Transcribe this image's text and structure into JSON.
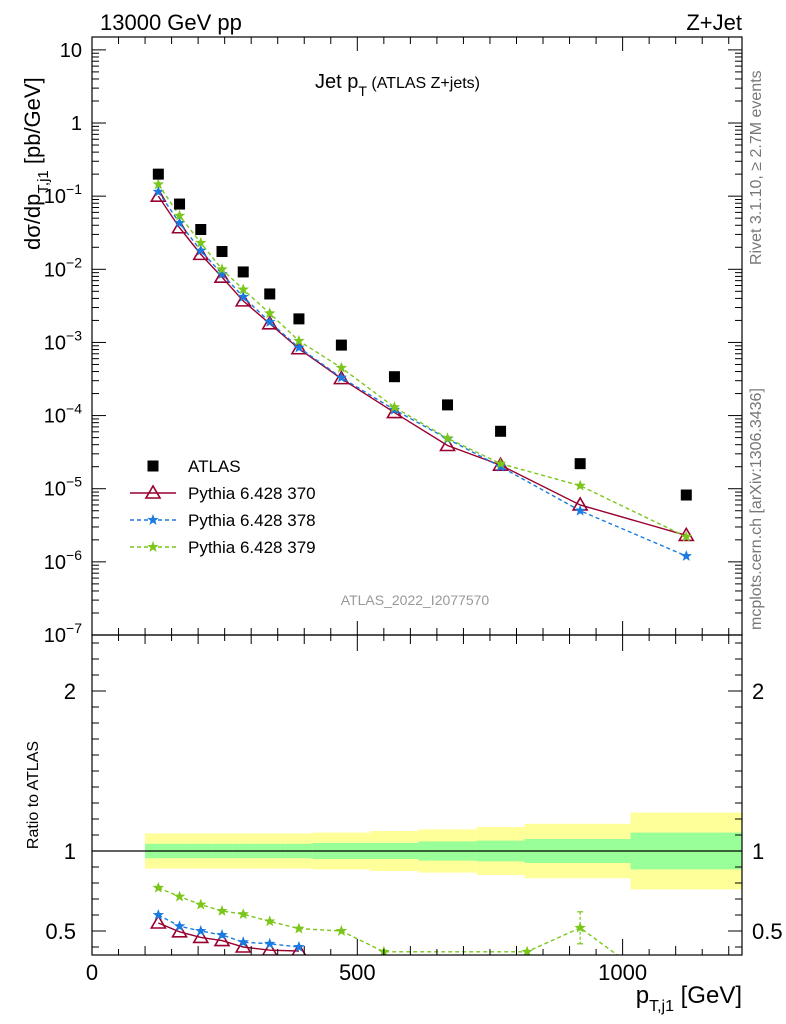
{
  "header": {
    "left": "13000 GeV pp",
    "right": "Z+Jet"
  },
  "side_labels": {
    "rivet": "Rivet 3.1.10, ≥ 2.7M events",
    "mcplots": "mcplots.cern.ch [arXiv:1306.3436]"
  },
  "chart_data": [
    {
      "type": "scatter",
      "title_main": "Jet p",
      "title_sub": "T",
      "title_tail": "(ATLAS Z+jets)",
      "ylabel_main": "dσ/dp",
      "ylabel_sub": "T,j1",
      "ylabel_tail": " [pb/GeV]",
      "yscale": "log",
      "ylim": [
        1e-07,
        15
      ],
      "xlim": [
        0,
        1225
      ],
      "yticks": [
        {
          "v": 1e-07,
          "base": "10",
          "exp": "−7"
        },
        {
          "v": 1e-06,
          "base": "10",
          "exp": "−6"
        },
        {
          "v": 1e-05,
          "base": "10",
          "exp": "−5"
        },
        {
          "v": 0.0001,
          "base": "10",
          "exp": "−4"
        },
        {
          "v": 0.001,
          "base": "10",
          "exp": "−3"
        },
        {
          "v": 0.01,
          "base": "10",
          "exp": "−2"
        },
        {
          "v": 0.1,
          "base": "10",
          "exp": "−1"
        },
        {
          "v": 1,
          "base": "1",
          "exp": ""
        },
        {
          "v": 10,
          "base": "10",
          "exp": ""
        }
      ],
      "watermark": "ATLAS_2022_I2077570",
      "legend_position": "bottom-left",
      "x": [
        125,
        165,
        205,
        245,
        285,
        335,
        390,
        470,
        570,
        670,
        770,
        920,
        1120
      ],
      "series": [
        {
          "name": "ATLAS",
          "color": "#000000",
          "marker": "square",
          "dash": "",
          "values": [
            0.2,
            0.078,
            0.035,
            0.0175,
            0.0092,
            0.0046,
            0.0021,
            0.00092,
            0.00034,
            0.00014,
            6.1e-05,
            2.2e-05,
            8.2e-06
          ]
        },
        {
          "name": "Pythia 6.428 370",
          "color": "#99002e",
          "marker": "triangle",
          "dash": "",
          "values": [
            0.1,
            0.037,
            0.016,
            0.0078,
            0.0037,
            0.0018,
            0.00082,
            0.00032,
            0.00011,
            3.9e-05,
            2.1e-05,
            6e-06,
            2.3e-06
          ]
        },
        {
          "name": "Pythia 6.428 378",
          "color": "#1a7ae0",
          "marker": "star",
          "dash": "4,3",
          "values": [
            0.115,
            0.043,
            0.018,
            0.0086,
            0.0042,
            0.0019,
            0.00085,
            0.00033,
            0.00012,
            4.8e-05,
            2e-05,
            5e-06,
            1.2e-06
          ]
        },
        {
          "name": "Pythia 6.428 379",
          "color": "#7ac61a",
          "marker": "star",
          "dash": "4,3",
          "values": [
            0.145,
            0.054,
            0.023,
            0.01,
            0.0053,
            0.0025,
            0.00105,
            0.00045,
            0.00013,
            4.9e-05,
            2.2e-05,
            1.1e-05,
            2.2e-06
          ]
        }
      ]
    },
    {
      "type": "line",
      "ylabel": "Ratio to ATLAS",
      "ylim": [
        0.35,
        2.35
      ],
      "xlim": [
        0,
        1225
      ],
      "xlabel_main": "p",
      "xlabel_sub": "T,j1",
      "xlabel_tail": " [GeV]",
      "xticks": [
        0,
        500,
        1000
      ],
      "yticks": [
        0.5,
        1,
        2
      ],
      "band_bins": [
        {
          "lo": 100,
          "hi": 145,
          "inner": [
            0.955,
            1.045
          ],
          "outer": [
            0.89,
            1.11
          ]
        },
        {
          "lo": 145,
          "hi": 185,
          "inner": [
            0.955,
            1.045
          ],
          "outer": [
            0.89,
            1.11
          ]
        },
        {
          "lo": 185,
          "hi": 225,
          "inner": [
            0.955,
            1.045
          ],
          "outer": [
            0.89,
            1.11
          ]
        },
        {
          "lo": 225,
          "hi": 265,
          "inner": [
            0.955,
            1.045
          ],
          "outer": [
            0.89,
            1.11
          ]
        },
        {
          "lo": 265,
          "hi": 305,
          "inner": [
            0.955,
            1.045
          ],
          "outer": [
            0.89,
            1.11
          ]
        },
        {
          "lo": 305,
          "hi": 365,
          "inner": [
            0.955,
            1.045
          ],
          "outer": [
            0.89,
            1.11
          ]
        },
        {
          "lo": 365,
          "hi": 415,
          "inner": [
            0.955,
            1.045
          ],
          "outer": [
            0.89,
            1.11
          ]
        },
        {
          "lo": 415,
          "hi": 525,
          "inner": [
            0.95,
            1.05
          ],
          "outer": [
            0.885,
            1.115
          ]
        },
        {
          "lo": 525,
          "hi": 615,
          "inner": [
            0.95,
            1.05
          ],
          "outer": [
            0.875,
            1.125
          ]
        },
        {
          "lo": 615,
          "hi": 725,
          "inner": [
            0.94,
            1.06
          ],
          "outer": [
            0.865,
            1.135
          ]
        },
        {
          "lo": 725,
          "hi": 815,
          "inner": [
            0.935,
            1.065
          ],
          "outer": [
            0.85,
            1.15
          ]
        },
        {
          "lo": 815,
          "hi": 1015,
          "inner": [
            0.925,
            1.075
          ],
          "outer": [
            0.83,
            1.17
          ]
        },
        {
          "lo": 1015,
          "hi": 1225,
          "inner": [
            0.885,
            1.115
          ],
          "outer": [
            0.76,
            1.24
          ]
        }
      ],
      "series": [
        {
          "name": "Pythia 6.428 370",
          "color": "#99002e",
          "marker": "triangle",
          "dash": "",
          "x": [
            125,
            165,
            205,
            245,
            285,
            335,
            390
          ],
          "values": [
            0.55,
            0.495,
            0.46,
            0.44,
            0.4,
            0.38,
            0.375
          ]
        },
        {
          "name": "Pythia 6.428 378",
          "color": "#1a7ae0",
          "marker": "star",
          "dash": "4,3",
          "x": [
            125,
            165,
            205,
            245,
            285,
            335,
            390
          ],
          "values": [
            0.6,
            0.53,
            0.5,
            0.475,
            0.43,
            0.42,
            0.4
          ]
        },
        {
          "name": "Pythia 6.428 379",
          "color": "#7ac61a",
          "marker": "star",
          "dash": "4,3",
          "x": [
            125,
            165,
            205,
            245,
            285,
            335,
            390,
            470,
            550,
            820,
            920,
            1060
          ],
          "values": [
            0.77,
            0.715,
            0.665,
            0.625,
            0.605,
            0.56,
            0.515,
            0.5,
            0.37,
            0.37,
            0.52,
            0.18
          ],
          "errors": {
            "920": 0.1
          }
        }
      ]
    }
  ]
}
